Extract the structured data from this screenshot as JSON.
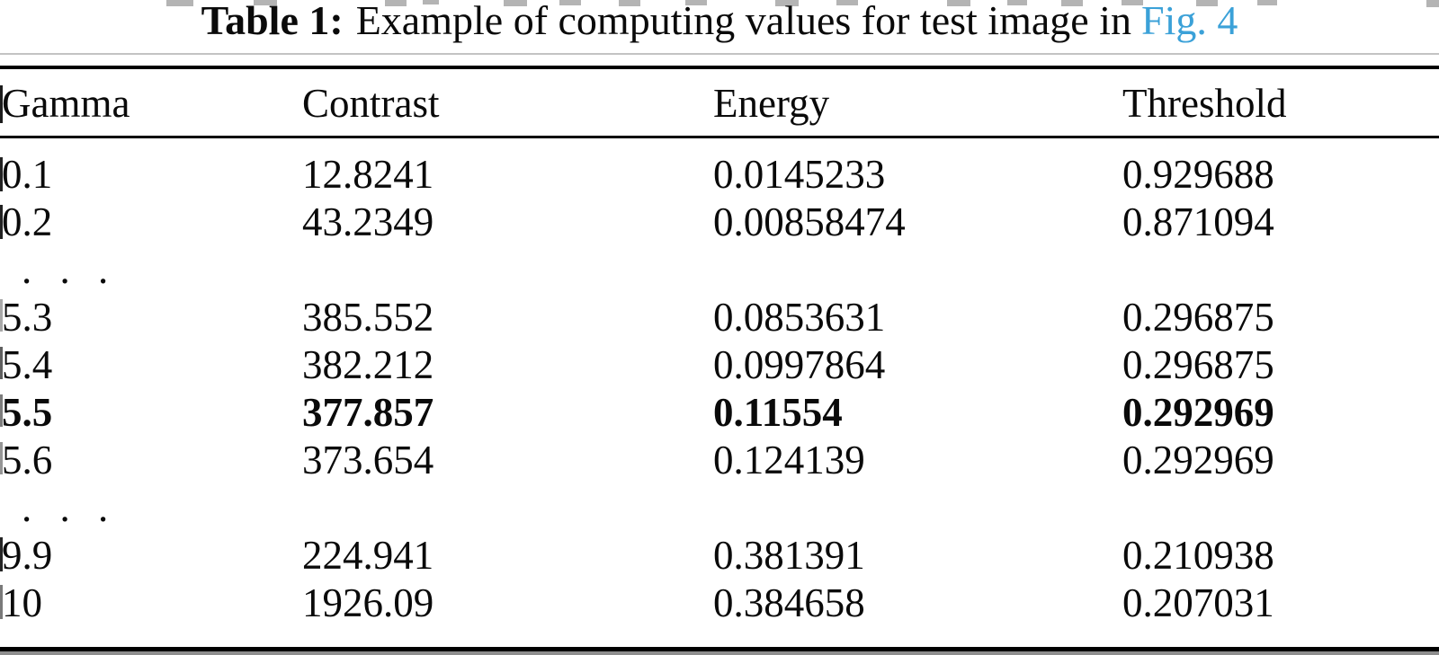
{
  "caption": {
    "label": "Table 1:",
    "text": "Example of computing values for test image in",
    "link": "Fig. 4",
    "link_color": "#3ba1d8"
  },
  "table": {
    "columns": [
      "Gamma",
      "Contrast",
      "Energy",
      "Threshold"
    ],
    "ellipsis": ". . .",
    "rows": [
      {
        "gamma": "0.1",
        "contrast": "12.8241",
        "energy": "0.0145233",
        "threshold": "0.929688",
        "bold": false
      },
      {
        "gamma": "0.2",
        "contrast": "43.2349",
        "energy": "0.00858474",
        "threshold": "0.871094",
        "bold": false
      },
      {
        "type": "ellipsis"
      },
      {
        "gamma": "5.3",
        "contrast": "385.552",
        "energy": "0.0853631",
        "threshold": "0.296875",
        "bold": false
      },
      {
        "gamma": "5.4",
        "contrast": "382.212",
        "energy": "0.0997864",
        "threshold": "0.296875",
        "bold": false
      },
      {
        "gamma": "5.5",
        "contrast": "377.857",
        "energy": "0.11554",
        "threshold": "0.292969",
        "bold": true
      },
      {
        "gamma": "5.6",
        "contrast": "373.654",
        "energy": "0.124139",
        "threshold": "0.292969",
        "bold": false
      },
      {
        "type": "ellipsis"
      },
      {
        "gamma": "9.9",
        "contrast": "224.941",
        "energy": "0.381391",
        "threshold": "0.210938",
        "bold": false
      },
      {
        "gamma": "10",
        "contrast": "1926.09",
        "energy": "0.384658",
        "threshold": "0.207031",
        "bold": false
      }
    ]
  }
}
